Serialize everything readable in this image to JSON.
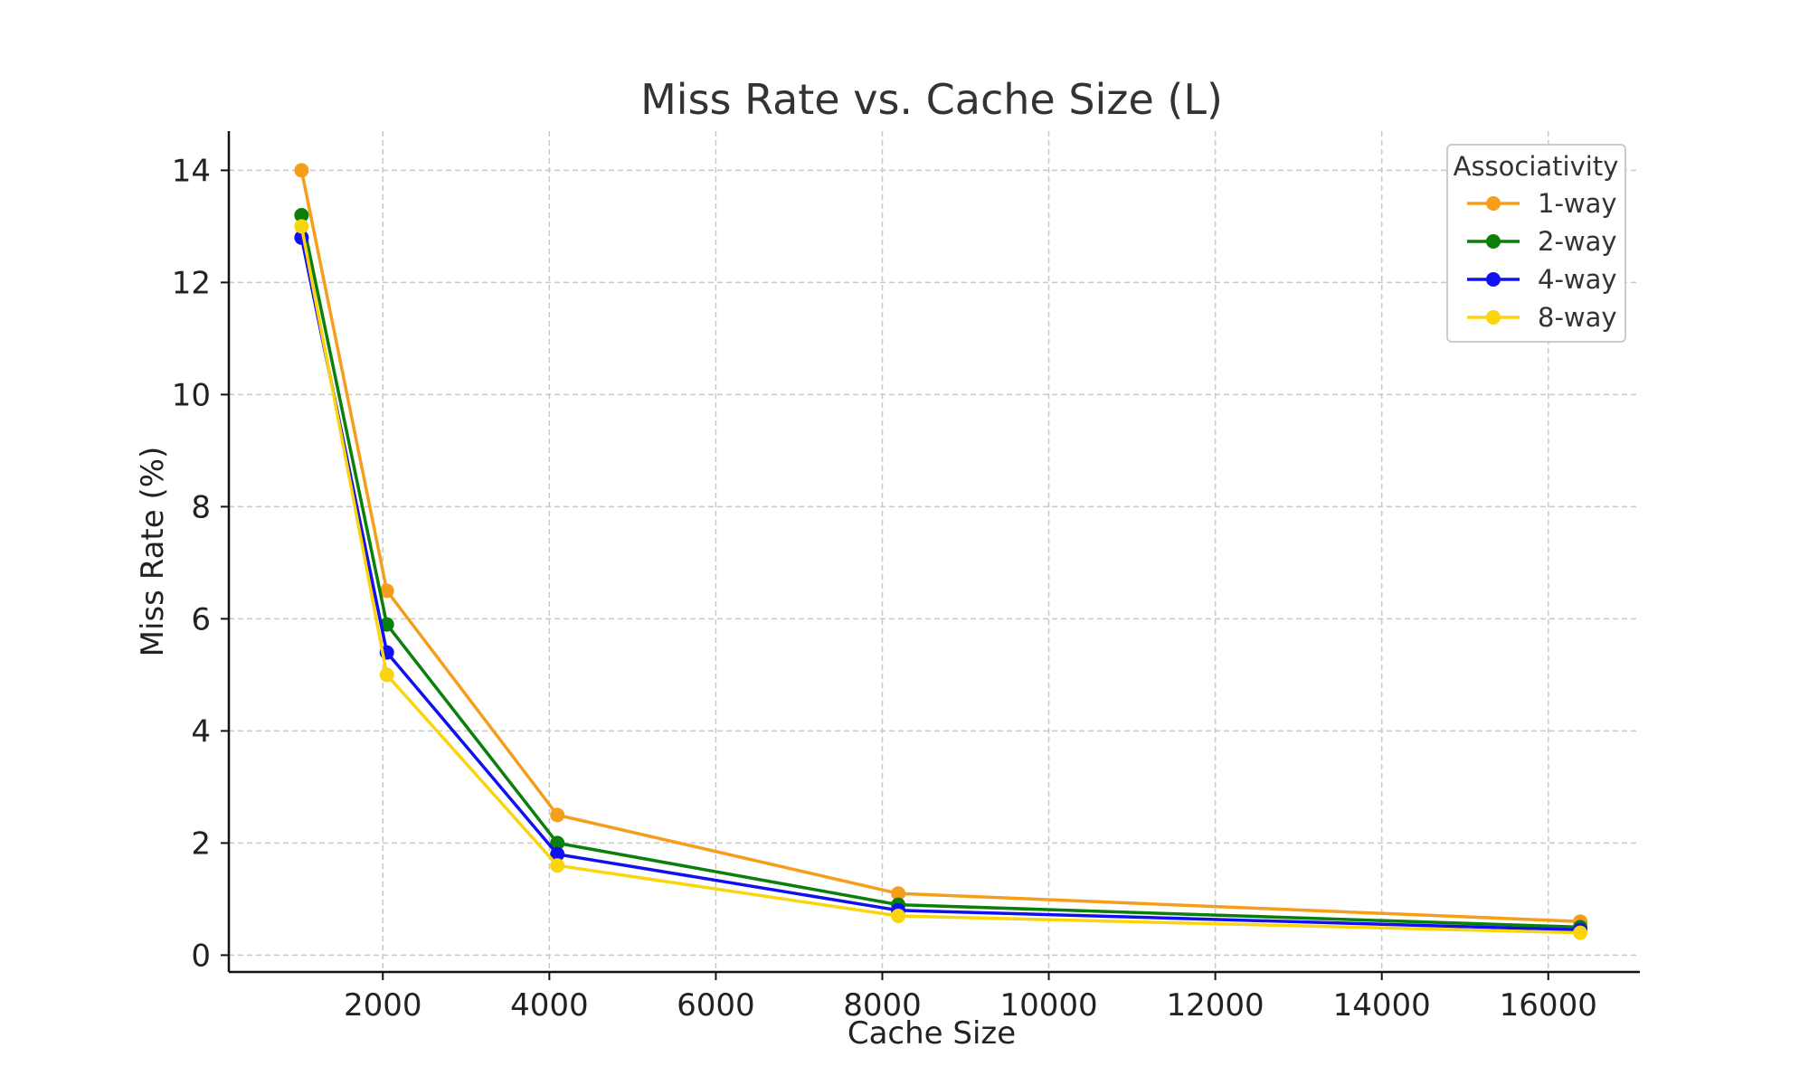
{
  "chart_data": {
    "type": "line",
    "title": "Miss Rate vs. Cache Size (L)",
    "xlabel": "Cache Size",
    "ylabel": "Miss Rate (%)",
    "x": [
      1024,
      2048,
      4096,
      8192,
      16384
    ],
    "xlim": [
      150,
      17100
    ],
    "ylim": [
      -0.3,
      14.7
    ],
    "x_ticks": [
      2000,
      4000,
      6000,
      8000,
      10000,
      12000,
      14000,
      16000
    ],
    "y_ticks": [
      0,
      2,
      4,
      6,
      8,
      10,
      12,
      14
    ],
    "grid": true,
    "legend": {
      "title": "Associativity",
      "placement": "top-right"
    },
    "series": [
      {
        "name": "1-way",
        "color": "#f59e1c",
        "values": [
          14.0,
          6.5,
          2.5,
          1.1,
          0.6
        ]
      },
      {
        "name": "2-way",
        "color": "#0a7f0a",
        "values": [
          13.2,
          5.9,
          2.0,
          0.9,
          0.5
        ]
      },
      {
        "name": "4-way",
        "color": "#1010f0",
        "values": [
          12.8,
          5.4,
          1.8,
          0.8,
          0.45
        ]
      },
      {
        "name": "8-way",
        "color": "#fad40c",
        "values": [
          13.0,
          5.0,
          1.6,
          0.7,
          0.4
        ]
      }
    ]
  }
}
